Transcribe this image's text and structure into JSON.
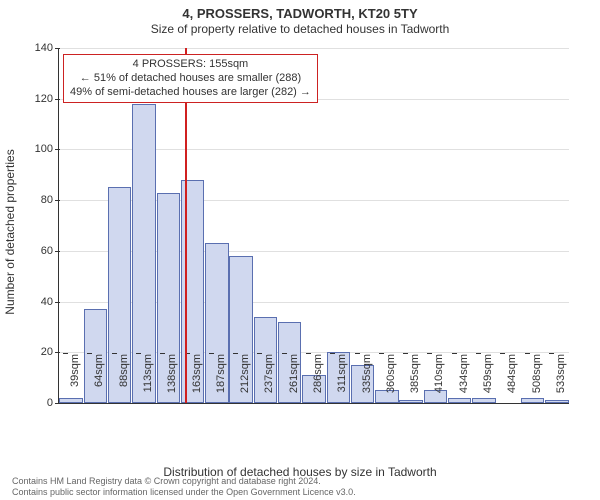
{
  "title": "4, PROSSERS, TADWORTH, KT20 5TY",
  "subtitle": "Size of property relative to detached houses in Tadworth",
  "ylabel": "Number of detached properties",
  "xlabel": "Distribution of detached houses by size in Tadworth",
  "chart": {
    "type": "histogram",
    "ylim_max": 140,
    "ytick_step": 20,
    "bar_fill": "#d0d8ef",
    "bar_stroke": "#5a6fb0",
    "grid_color": "#e0e0e0",
    "axis_color": "#333333",
    "background": "#ffffff",
    "marker_color": "#d02020",
    "categories": [
      "39sqm",
      "64sqm",
      "88sqm",
      "113sqm",
      "138sqm",
      "163sqm",
      "187sqm",
      "212sqm",
      "237sqm",
      "261sqm",
      "286sqm",
      "311sqm",
      "335sqm",
      "360sqm",
      "385sqm",
      "410sqm",
      "434sqm",
      "459sqm",
      "484sqm",
      "508sqm",
      "533sqm"
    ],
    "values": [
      2,
      37,
      85,
      118,
      83,
      88,
      63,
      58,
      34,
      32,
      11,
      20,
      15,
      5,
      1,
      5,
      2,
      2,
      0,
      2,
      1
    ],
    "marker_value_sqm": 155,
    "annot_box": {
      "lines": [
        "4 PROSSERS: 155sqm",
        "← 51% of detached houses are smaller (288)",
        "49% of semi-detached houses are larger (282) →"
      ],
      "border_color": "#cc2222",
      "background": "#ffffff",
      "fontsize": 11
    }
  },
  "footer_lines": [
    "Contains HM Land Registry data © Crown copyright and database right 2024.",
    "Contains public sector information licensed under the Open Government Licence v3.0."
  ],
  "typography": {
    "title_fontsize": 13,
    "subtitle_fontsize": 12,
    "axis_label_fontsize": 12,
    "tick_fontsize": 11,
    "footer_fontsize": 9,
    "font_family": "Arial"
  }
}
